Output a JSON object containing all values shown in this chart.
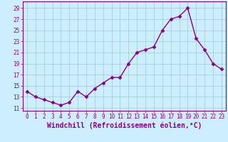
{
  "x": [
    0,
    1,
    2,
    3,
    4,
    5,
    6,
    7,
    8,
    9,
    10,
    11,
    12,
    13,
    14,
    15,
    16,
    17,
    18,
    19,
    20,
    21,
    22,
    23
  ],
  "y": [
    14,
    13,
    12.5,
    12,
    11.5,
    12,
    14,
    13,
    14.5,
    15.5,
    16.5,
    16.5,
    19,
    21,
    21.5,
    22,
    25,
    27,
    27.5,
    29,
    23.5,
    21.5,
    19,
    18
  ],
  "line_color": "#880088",
  "marker": "D",
  "markersize": 2.5,
  "linewidth": 1,
  "bg_color": "#cceeff",
  "grid_color": "#99cccc",
  "xlabel": "Windchill (Refroidissement éolien,°C)",
  "xlabel_fontsize": 7,
  "ylabel_ticks": [
    11,
    13,
    15,
    17,
    19,
    21,
    23,
    25,
    27,
    29
  ],
  "ylim": [
    10.5,
    30.2
  ],
  "xlim": [
    -0.5,
    23.5
  ],
  "xticks": [
    0,
    1,
    2,
    3,
    4,
    5,
    6,
    7,
    8,
    9,
    10,
    11,
    12,
    13,
    14,
    15,
    16,
    17,
    18,
    19,
    20,
    21,
    22,
    23
  ],
  "tick_fontsize": 5.5,
  "spine_color": "#880088"
}
